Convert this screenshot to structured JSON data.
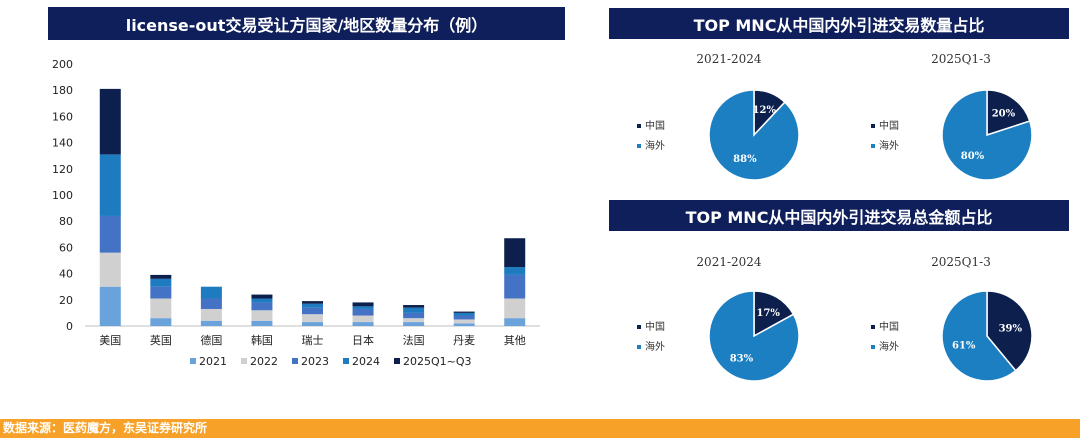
{
  "bar_chart": {
    "title": "license-out交易受让方国家/地区数量分布（例）"
  },
  "pie_section_1": {
    "title": "TOP MNC从中国内外引进交易数量占比"
  },
  "pie_section_2": {
    "title": "TOP MNC从中国内外引进交易总金额占比"
  },
  "footer": {
    "source": "数据来源：医药魔方，东吴证券研究所"
  },
  "chart_data": [
    {
      "type": "bar",
      "stacked": true,
      "title": "license-out交易受让方国家/地区数量分布（例）",
      "categories": [
        "美国",
        "英国",
        "德国",
        "韩国",
        "瑞士",
        "日本",
        "法国",
        "丹麦",
        "其他"
      ],
      "ylim": [
        0,
        200
      ],
      "yticks": [
        0,
        20,
        40,
        60,
        80,
        100,
        120,
        140,
        160,
        180,
        200
      ],
      "grid": false,
      "legend": "bottom",
      "series": [
        {
          "name": "2021",
          "color": "#6aa3dc",
          "values": [
            30,
            6,
            4,
            4,
            3,
            3,
            3,
            2,
            6
          ]
        },
        {
          "name": "2022",
          "color": "#d0d0d0",
          "values": [
            26,
            15,
            9,
            8,
            6,
            5,
            3,
            3,
            15
          ]
        },
        {
          "name": "2023",
          "color": "#4472c4",
          "values": [
            28,
            9,
            8,
            6,
            5,
            5,
            4,
            3,
            18
          ]
        },
        {
          "name": "2024",
          "color": "#1f7bbf",
          "values": [
            47,
            6,
            9,
            3,
            3,
            2,
            4,
            2,
            6
          ]
        },
        {
          "name": "2025Q1~Q3",
          "color": "#0d1f4d",
          "values": [
            50,
            3,
            0,
            3,
            2,
            3,
            2,
            1,
            22
          ]
        }
      ]
    },
    {
      "type": "pie",
      "section": "TOP MNC从中国内外引进交易数量占比",
      "title": "2021-2024",
      "legend": "left",
      "slices": [
        {
          "name": "中国",
          "value": 12,
          "label": "12%",
          "color": "#0d1f4d"
        },
        {
          "name": "海外",
          "value": 88,
          "label": "88%",
          "color": "#1b7fc1"
        }
      ]
    },
    {
      "type": "pie",
      "section": "TOP MNC从中国内外引进交易数量占比",
      "title": "2025Q1-3",
      "legend": "left",
      "slices": [
        {
          "name": "中国",
          "value": 20,
          "label": "20%",
          "color": "#0d1f4d"
        },
        {
          "name": "海外",
          "value": 80,
          "label": "80%",
          "color": "#1b7fc1"
        }
      ]
    },
    {
      "type": "pie",
      "section": "TOP MNC从中国内外引进交易总金额占比",
      "title": "2021-2024",
      "legend": "left",
      "slices": [
        {
          "name": "中国",
          "value": 17,
          "label": "17%",
          "color": "#0d1f4d"
        },
        {
          "name": "海外",
          "value": 83,
          "label": "83%",
          "color": "#1b7fc1"
        }
      ]
    },
    {
      "type": "pie",
      "section": "TOP MNC从中国内外引进交易总金额占比",
      "title": "2025Q1-3",
      "legend": "left",
      "slices": [
        {
          "name": "中国",
          "value": 39,
          "label": "39%",
          "color": "#0d1f4d"
        },
        {
          "name": "海外",
          "value": 61,
          "label": "61%",
          "color": "#1b7fc1"
        }
      ]
    }
  ]
}
